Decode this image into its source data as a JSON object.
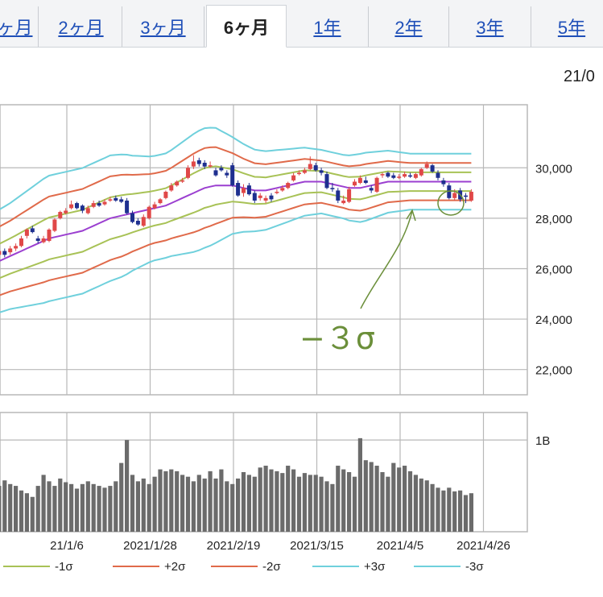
{
  "tabs": [
    {
      "label": "ヶ月",
      "active": false
    },
    {
      "label": "2ヶ月",
      "active": false
    },
    {
      "label": "3ヶ月",
      "active": false
    },
    {
      "label": "6ヶ月",
      "active": true
    },
    {
      "label": "1年",
      "active": false
    },
    {
      "label": "2年",
      "active": false
    },
    {
      "label": "3年",
      "active": false
    },
    {
      "label": "5年",
      "active": false
    }
  ],
  "date_label": "21/0",
  "annotation": "−３σ",
  "colors": {
    "up": "#e04848",
    "down": "#1e2f8f",
    "ma": "#9b3fd0",
    "sigma1": "#a8c256",
    "sigma2": "#e06a4a",
    "sigma3": "#6fd0dc",
    "volume": "#6b6b6b",
    "grid": "#b8b8b8",
    "annotation": "#6b8f3a"
  },
  "chart_data": [
    {
      "type": "candlestick",
      "title": "",
      "x": [
        "2020/12/21",
        "2020/12/22",
        "2020/12/23",
        "2020/12/24",
        "2020/12/25",
        "2020/12/28",
        "2020/12/29",
        "2020/12/30",
        "2021/1/4",
        "2021/1/5",
        "2021/1/6",
        "2021/1/7",
        "2021/1/8",
        "2021/1/12",
        "2021/1/13",
        "2021/1/14",
        "2021/1/15",
        "2021/1/18",
        "2021/1/19",
        "2021/1/20",
        "2021/1/21",
        "2021/1/22",
        "2021/1/25",
        "2021/1/26",
        "2021/1/27",
        "2021/1/28",
        "2021/1/29",
        "2021/2/1",
        "2021/2/2",
        "2021/2/3",
        "2021/2/4",
        "2021/2/5",
        "2021/2/8",
        "2021/2/9",
        "2021/2/10",
        "2021/2/12",
        "2021/2/15",
        "2021/2/16",
        "2021/2/17",
        "2021/2/18",
        "2021/2/19",
        "2021/2/22",
        "2021/2/24",
        "2021/2/25",
        "2021/2/26",
        "2021/3/1",
        "2021/3/2",
        "2021/3/3",
        "2021/3/4",
        "2021/3/5",
        "2021/3/8",
        "2021/3/9",
        "2021/3/10",
        "2021/3/11",
        "2021/3/12",
        "2021/3/15",
        "2021/3/16",
        "2021/3/17",
        "2021/3/18",
        "2021/3/19",
        "2021/3/22",
        "2021/3/23",
        "2021/3/24",
        "2021/3/25",
        "2021/3/26",
        "2021/3/29",
        "2021/3/30",
        "2021/3/31",
        "2021/4/1",
        "2021/4/2",
        "2021/4/5",
        "2021/4/6",
        "2021/4/7",
        "2021/4/8",
        "2021/4/9",
        "2021/4/12",
        "2021/4/13",
        "2021/4/14",
        "2021/4/15",
        "2021/4/16",
        "2021/4/19",
        "2021/4/20",
        "2021/4/21",
        "2021/4/22",
        "2021/4/23",
        "2021/4/26",
        "2021/4/27"
      ],
      "open": [
        26400,
        26550,
        26700,
        26650,
        26800,
        26900,
        27300,
        27600,
        27200,
        27050,
        27100,
        27500,
        28000,
        28200,
        28400,
        28600,
        28500,
        28200,
        28450,
        28600,
        28550,
        28700,
        28800,
        28750,
        28700,
        28200,
        27900,
        27700,
        28000,
        28400,
        28600,
        28800,
        29100,
        29300,
        29450,
        29600,
        30050,
        30300,
        30200,
        30100,
        29900,
        30000,
        29800,
        30100,
        29400,
        29000,
        29300,
        29000,
        28800,
        28700,
        28900,
        29000,
        29100,
        29200,
        29500,
        29750,
        29800,
        29950,
        30100,
        29900,
        29750,
        29200,
        29100,
        28600,
        28650,
        29300,
        29400,
        29500,
        29200,
        29050,
        29700,
        29800,
        29700,
        29600,
        29650,
        29700,
        29600,
        29700,
        30000,
        30100,
        29800,
        29500,
        29300,
        28800,
        29100,
        28900,
        28700
      ],
      "close": [
        26600,
        26700,
        26550,
        26800,
        26900,
        27200,
        27550,
        27450,
        27100,
        27200,
        27550,
        27950,
        28250,
        28300,
        28550,
        28400,
        28300,
        28400,
        28600,
        28500,
        28650,
        28750,
        28700,
        28650,
        28200,
        27850,
        27750,
        28050,
        28450,
        28550,
        28750,
        29050,
        29300,
        29450,
        29500,
        30000,
        30250,
        30150,
        30050,
        30100,
        29700,
        29900,
        29700,
        29300,
        28900,
        29200,
        28950,
        28700,
        28900,
        28800,
        28750,
        29050,
        29200,
        29400,
        29700,
        29800,
        29900,
        30150,
        29900,
        29800,
        29200,
        29150,
        28700,
        28700,
        29150,
        29450,
        29600,
        29400,
        29100,
        29600,
        29750,
        29650,
        29600,
        29650,
        29750,
        29650,
        29750,
        29950,
        30150,
        29850,
        29600,
        29350,
        28800,
        29000,
        28750,
        28850,
        29050
      ],
      "high": [
        26700,
        26800,
        26800,
        26900,
        27000,
        27300,
        27600,
        27700,
        27300,
        27300,
        27600,
        28000,
        28300,
        28400,
        28700,
        28650,
        28550,
        28500,
        28700,
        28700,
        28750,
        28850,
        28900,
        28850,
        28800,
        28300,
        28000,
        28150,
        28500,
        28650,
        28800,
        29100,
        29400,
        29500,
        29600,
        30100,
        30500,
        30400,
        30300,
        30250,
        30000,
        30100,
        29900,
        30200,
        29500,
        29350,
        29400,
        29100,
        29000,
        28900,
        29000,
        29150,
        29300,
        29450,
        29800,
        29900,
        30000,
        30450,
        30200,
        30000,
        29850,
        29400,
        29200,
        28900,
        29250,
        29550,
        29700,
        29650,
        29300,
        29650,
        29800,
        29850,
        29800,
        29750,
        29850,
        29800,
        29800,
        30000,
        30250,
        30150,
        29900,
        29600,
        29400,
        29150,
        29200,
        29000,
        29150
      ],
      "low": [
        26300,
        26450,
        26450,
        26550,
        26700,
        26850,
        27200,
        27400,
        27000,
        27000,
        27050,
        27450,
        27950,
        28150,
        28350,
        28350,
        28200,
        28150,
        28400,
        28450,
        28500,
        28650,
        28650,
        28600,
        28150,
        27800,
        27700,
        27650,
        27950,
        28350,
        28550,
        28750,
        29050,
        29250,
        29400,
        29550,
        29950,
        30050,
        29950,
        30000,
        29650,
        29850,
        29600,
        29250,
        28850,
        28850,
        28900,
        28600,
        28700,
        28600,
        28650,
        28950,
        29050,
        29150,
        29450,
        29700,
        29750,
        29900,
        29850,
        29700,
        29150,
        29050,
        28600,
        28550,
        28600,
        29250,
        29350,
        29350,
        29000,
        29000,
        29600,
        29600,
        29550,
        29550,
        29600,
        29600,
        29550,
        29650,
        29950,
        29800,
        29500,
        29250,
        28750,
        28700,
        28650,
        28600,
        28650
      ],
      "ma": [
        26200,
        26300,
        26400,
        26500,
        26600,
        26700,
        26800,
        26900,
        27000,
        27100,
        27200,
        27250,
        27300,
        27350,
        27400,
        27450,
        27500,
        27600,
        27700,
        27800,
        27900,
        28000,
        28050,
        28100,
        28150,
        28200,
        28250,
        28300,
        28350,
        28400,
        28450,
        28500,
        28600,
        28700,
        28800,
        28900,
        29000,
        29100,
        29200,
        29250,
        29300,
        29300,
        29300,
        29300,
        29250,
        29200,
        29150,
        29100,
        29100,
        29100,
        29150,
        29200,
        29250,
        29300,
        29350,
        29400,
        29450,
        29450,
        29450,
        29450,
        29400,
        29350,
        29300,
        29250,
        29200,
        29200,
        29200,
        29250,
        29300,
        29350,
        29400,
        29450,
        29450,
        29450,
        29450,
        29450,
        29450,
        29450,
        29450,
        29450,
        29450,
        29450,
        29450,
        29450,
        29450,
        29450,
        29450
      ],
      "sd": [
        680,
        680,
        690,
        700,
        720,
        740,
        760,
        780,
        800,
        820,
        830,
        830,
        830,
        830,
        830,
        830,
        830,
        830,
        830,
        830,
        830,
        830,
        820,
        810,
        790,
        760,
        740,
        720,
        700,
        690,
        690,
        690,
        700,
        720,
        740,
        760,
        780,
        790,
        790,
        780,
        760,
        720,
        680,
        640,
        610,
        580,
        560,
        540,
        530,
        520,
        510,
        500,
        490,
        480,
        470,
        460,
        450,
        440,
        430,
        420,
        420,
        420,
        420,
        420,
        430,
        440,
        450,
        450,
        440,
        430,
        420,
        410,
        400,
        390,
        380,
        370,
        370,
        370,
        370,
        370,
        370,
        370,
        370,
        370,
        370,
        370,
        370
      ],
      "ylim": [
        21000,
        32500
      ],
      "yticks": [
        22000,
        24000,
        26000,
        28000,
        30000
      ],
      "ytick_labels": [
        "22,000",
        "24,000",
        "26,000",
        "28,000",
        "30,000"
      ],
      "xticks": [
        {
          "label": "21/1/6",
          "index": 10
        },
        {
          "label": "2021/1/28",
          "index": 25
        },
        {
          "label": "2021/2/19",
          "index": 40
        },
        {
          "label": "2021/3/15",
          "index": 55
        },
        {
          "label": "2021/4/5",
          "index": 70
        },
        {
          "label": "2021/4/26",
          "index": 85
        }
      ],
      "grid": true
    },
    {
      "type": "bar",
      "title": "",
      "values_B": [
        0.58,
        0.5,
        0.56,
        0.52,
        0.5,
        0.45,
        0.42,
        0.38,
        0.5,
        0.62,
        0.55,
        0.5,
        0.58,
        0.54,
        0.52,
        0.47,
        0.52,
        0.55,
        0.52,
        0.5,
        0.48,
        0.5,
        0.55,
        0.75,
        1.0,
        0.62,
        0.55,
        0.58,
        0.52,
        0.6,
        0.68,
        0.66,
        0.68,
        0.66,
        0.62,
        0.6,
        0.55,
        0.62,
        0.58,
        0.66,
        0.58,
        0.68,
        0.55,
        0.52,
        0.58,
        0.65,
        0.62,
        0.6,
        0.7,
        0.72,
        0.68,
        0.66,
        0.64,
        0.72,
        0.68,
        0.6,
        0.64,
        0.62,
        0.62,
        0.6,
        0.55,
        0.52,
        0.72,
        0.68,
        0.65,
        0.6,
        1.02,
        0.78,
        0.76,
        0.72,
        0.65,
        0.6,
        0.75,
        0.7,
        0.72,
        0.66,
        0.62,
        0.58,
        0.56,
        0.52,
        0.48,
        0.45,
        0.48,
        0.44,
        0.45,
        0.4,
        0.42
      ],
      "yticks": [
        1.0
      ],
      "ytick_labels": [
        "1B"
      ],
      "ylim": [
        0,
        1.3
      ],
      "grid": true
    }
  ],
  "legend": [
    {
      "label": "-1σ",
      "color_key": "sigma1"
    },
    {
      "label": "+2σ",
      "color_key": "sigma2"
    },
    {
      "label": "-2σ",
      "color_key": "sigma2"
    },
    {
      "label": "+3σ",
      "color_key": "sigma3"
    },
    {
      "label": "-3σ",
      "color_key": "sigma3"
    }
  ]
}
